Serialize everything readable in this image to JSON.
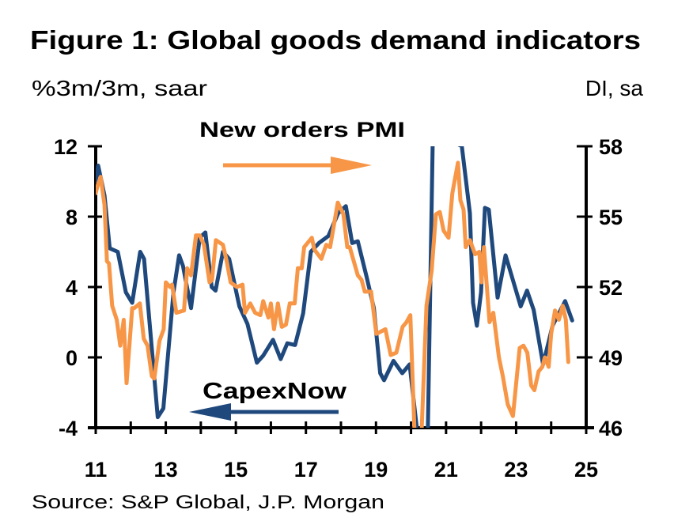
{
  "chart_data": {
    "type": "line",
    "title": "Figure 1: Global goods demand indicators",
    "ylabel_left": "%3m/3m, saar",
    "ylabel_right": "DI, sa",
    "source": "Source: S&P Global, J.P. Morgan",
    "xlim": [
      2011,
      2025
    ],
    "x_ticks": [
      "11",
      "13",
      "15",
      "17",
      "19",
      "21",
      "23",
      "25"
    ],
    "ylim_left": [
      -4,
      12
    ],
    "y_ticks_left": [
      "12",
      "8",
      "4",
      "0",
      "-4"
    ],
    "ylim_right": [
      46,
      58
    ],
    "y_ticks_right": [
      "58",
      "55",
      "52",
      "49",
      "46"
    ],
    "grid": false,
    "colors": {
      "capexnow": "#1f497d",
      "pmi": "#f79646"
    },
    "series": [
      {
        "name": "CapexNow",
        "axis": "left",
        "arrow": "left",
        "x": [
          2011.0,
          2011.07,
          2011.25,
          2011.4,
          2011.63,
          2011.86,
          2012.04,
          2012.27,
          2012.38,
          2012.77,
          2012.93,
          2013.22,
          2013.38,
          2013.49,
          2013.72,
          2013.97,
          2014.13,
          2014.31,
          2014.42,
          2014.63,
          2014.81,
          2015.1,
          2015.33,
          2015.6,
          2015.78,
          2016.06,
          2016.28,
          2016.47,
          2016.69,
          2016.92,
          2017.14,
          2017.37,
          2017.64,
          2017.92,
          2018.14,
          2018.32,
          2018.48,
          2018.73,
          2018.94,
          2019.12,
          2019.23,
          2019.5,
          2019.75,
          2019.96,
          2020.18,
          2020.3,
          2020.48,
          2020.62,
          2020.9,
          2021.2,
          2021.45,
          2021.68,
          2021.77,
          2021.88,
          2022.0,
          2022.11,
          2022.22,
          2022.47,
          2022.7,
          2023.13,
          2023.31,
          2023.5,
          2023.77,
          2024.04,
          2024.4,
          2024.6
        ],
        "values": [
          10.0,
          10.9,
          9.2,
          6.2,
          6.0,
          3.7,
          3.1,
          6.0,
          5.6,
          -3.4,
          -2.9,
          3.7,
          5.8,
          5.2,
          2.8,
          6.8,
          7.1,
          4.0,
          3.8,
          6.0,
          5.6,
          2.9,
          1.9,
          -0.3,
          0.1,
          1.0,
          -0.1,
          0.8,
          0.7,
          2.5,
          6.0,
          6.5,
          6.9,
          8.2,
          8.6,
          6.5,
          6.6,
          4.6,
          2.8,
          -0.9,
          -1.3,
          -0.2,
          -0.9,
          -0.4,
          -4.5,
          -9.0,
          -7.0,
          12.5,
          20.0,
          16.0,
          12.0,
          8.2,
          3.1,
          1.8,
          3.7,
          8.5,
          8.4,
          3.4,
          5.8,
          2.9,
          3.8,
          2.7,
          -0.4,
          1.8,
          3.2,
          2.1
        ]
      },
      {
        "name": "New orders PMI",
        "axis": "right",
        "arrow": "right",
        "x": [
          2011.0,
          2011.05,
          2011.14,
          2011.25,
          2011.32,
          2011.38,
          2011.47,
          2011.6,
          2011.7,
          2011.8,
          2011.88,
          2012.04,
          2012.1,
          2012.26,
          2012.37,
          2012.48,
          2012.6,
          2012.67,
          2012.82,
          2012.94,
          2013.0,
          2013.12,
          2013.18,
          2013.3,
          2013.52,
          2013.61,
          2013.72,
          2013.86,
          2013.97,
          2014.09,
          2014.25,
          2014.32,
          2014.43,
          2014.63,
          2014.74,
          2014.85,
          2015.03,
          2015.19,
          2015.26,
          2015.41,
          2015.55,
          2015.7,
          2015.78,
          2015.93,
          2016.0,
          2016.09,
          2016.2,
          2016.31,
          2016.43,
          2016.54,
          2016.68,
          2016.77,
          2016.88,
          2016.95,
          2017.17,
          2017.24,
          2017.44,
          2017.58,
          2017.69,
          2017.91,
          2018.07,
          2018.18,
          2018.25,
          2018.48,
          2018.59,
          2018.68,
          2018.86,
          2019.01,
          2019.27,
          2019.42,
          2019.58,
          2019.76,
          2019.87,
          2019.98,
          2020.1,
          2020.3,
          2020.44,
          2020.59,
          2020.71,
          2020.82,
          2020.93,
          2021.07,
          2021.18,
          2021.34,
          2021.41,
          2021.5,
          2021.56,
          2021.68,
          2021.83,
          2021.95,
          2022.01,
          2022.08,
          2022.24,
          2022.35,
          2022.51,
          2022.62,
          2022.76,
          2022.91,
          2023.1,
          2023.21,
          2023.32,
          2023.43,
          2023.52,
          2023.64,
          2023.75,
          2023.82,
          2023.93,
          2024.0,
          2024.11,
          2024.22,
          2024.33,
          2024.42,
          2024.49
        ],
        "values": [
          56.0,
          56.3,
          56.7,
          55.5,
          53.1,
          53.0,
          51.2,
          50.6,
          49.5,
          50.6,
          47.9,
          51.1,
          51.1,
          51.3,
          49.8,
          49.5,
          48.2,
          48.1,
          49.7,
          50.2,
          52.2,
          52.0,
          52.1,
          50.9,
          51.0,
          52.8,
          52.5,
          54.2,
          54.2,
          53.8,
          52.2,
          52.3,
          54.0,
          53.8,
          53.1,
          52.2,
          52.0,
          52.1,
          50.9,
          51.3,
          50.9,
          50.8,
          51.4,
          50.7,
          51.3,
          50.2,
          51.3,
          50.3,
          50.4,
          51.3,
          51.3,
          52.8,
          52.8,
          53.7,
          54.1,
          53.6,
          53.2,
          53.8,
          53.7,
          55.6,
          55.1,
          53.7,
          53.7,
          52.5,
          52.3,
          51.8,
          51.8,
          50.0,
          50.2,
          49.1,
          49.2,
          50.3,
          50.5,
          50.8,
          43.0,
          40.0,
          51.2,
          52.7,
          55.1,
          55.2,
          54.4,
          54.1,
          56.0,
          57.3,
          55.7,
          55.3,
          53.7,
          54.0,
          53.4,
          53.5,
          52.2,
          53.7,
          50.5,
          50.9,
          49.0,
          48.2,
          47.0,
          46.5,
          49.4,
          49.5,
          49.2,
          47.8,
          47.6,
          48.4,
          48.6,
          49.0,
          48.6,
          50.0,
          51.0,
          50.6,
          51.2,
          50.6,
          48.8
        ]
      }
    ]
  }
}
